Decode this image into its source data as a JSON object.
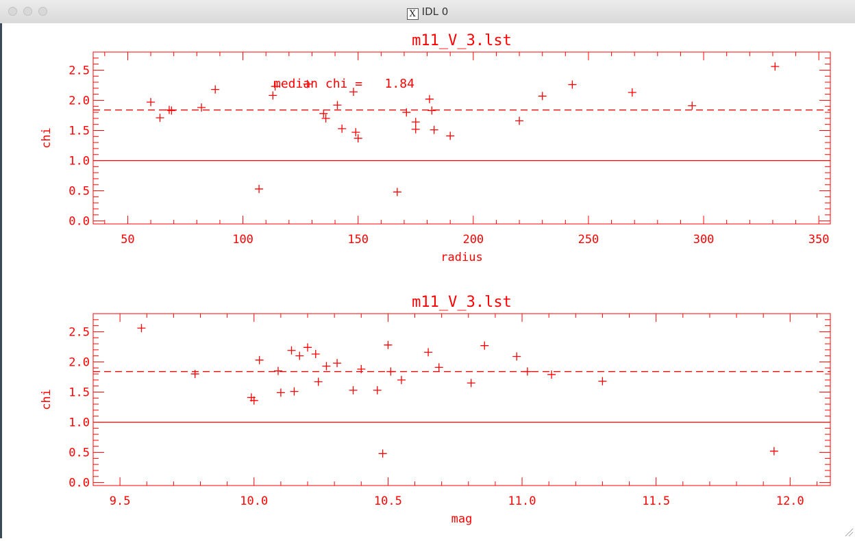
{
  "window": {
    "title": "IDL 0",
    "icon": "x11-icon"
  },
  "chart_data": [
    {
      "type": "scatter",
      "title": "m11_V_3.lst",
      "xlabel": "radius",
      "ylabel": "chi",
      "xlim": [
        35,
        355
      ],
      "ylim": [
        -0.05,
        2.8
      ],
      "xticks": [
        50,
        100,
        150,
        200,
        250,
        300,
        350
      ],
      "yticks": [
        0.0,
        0.5,
        1.0,
        1.5,
        2.0,
        2.5
      ],
      "xtick_labels": [
        "50",
        "100",
        "150",
        "200",
        "250",
        "300",
        "350"
      ],
      "ytick_labels": [
        "0.0",
        "0.5",
        "1.0",
        "1.5",
        "2.0",
        "2.5"
      ],
      "median": 1.84,
      "annotation": "median chi =   1.84",
      "reference_line": 1.0,
      "x": [
        60,
        64,
        68,
        69,
        82,
        88,
        107,
        113,
        114,
        128,
        141,
        135,
        136,
        143,
        148,
        149,
        150,
        167,
        171,
        175,
        175,
        181,
        182,
        183,
        190,
        220,
        230,
        243,
        269,
        295,
        331
      ],
      "y": [
        1.97,
        1.71,
        1.84,
        1.83,
        1.88,
        2.18,
        0.53,
        2.08,
        2.23,
        2.27,
        1.92,
        1.78,
        1.7,
        1.53,
        2.14,
        1.47,
        1.37,
        0.48,
        1.8,
        1.64,
        1.52,
        2.02,
        1.83,
        1.51,
        1.41,
        1.66,
        2.07,
        2.26,
        2.13,
        1.91,
        2.56
      ]
    },
    {
      "type": "scatter",
      "title": "m11_V_3.lst",
      "xlabel": "mag",
      "ylabel": "chi",
      "xlim": [
        9.4,
        12.15
      ],
      "ylim": [
        -0.05,
        2.8
      ],
      "xticks": [
        9.5,
        10.0,
        10.5,
        11.0,
        11.5,
        12.0
      ],
      "yticks": [
        0.0,
        0.5,
        1.0,
        1.5,
        2.0,
        2.5
      ],
      "xtick_labels": [
        "9.5",
        "10.0",
        "10.5",
        "11.0",
        "11.5",
        "12.0"
      ],
      "ytick_labels": [
        "0.0",
        "0.5",
        "1.0",
        "1.5",
        "2.0",
        "2.5"
      ],
      "median": 1.84,
      "reference_line": 1.0,
      "x": [
        9.58,
        9.78,
        9.99,
        10.0,
        10.02,
        10.09,
        10.1,
        10.14,
        10.15,
        10.17,
        10.2,
        10.23,
        10.24,
        10.27,
        10.31,
        10.37,
        10.4,
        10.46,
        10.48,
        10.5,
        10.51,
        10.55,
        10.65,
        10.69,
        10.81,
        10.86,
        10.98,
        11.02,
        11.11,
        11.3,
        11.94
      ],
      "y": [
        2.56,
        1.8,
        1.41,
        1.36,
        2.03,
        1.85,
        1.49,
        2.19,
        1.51,
        2.1,
        2.24,
        2.13,
        1.67,
        1.93,
        1.98,
        1.53,
        1.88,
        1.53,
        0.48,
        2.28,
        1.84,
        1.7,
        2.16,
        1.91,
        1.65,
        2.27,
        2.09,
        1.84,
        1.79,
        1.68,
        0.52
      ]
    }
  ]
}
